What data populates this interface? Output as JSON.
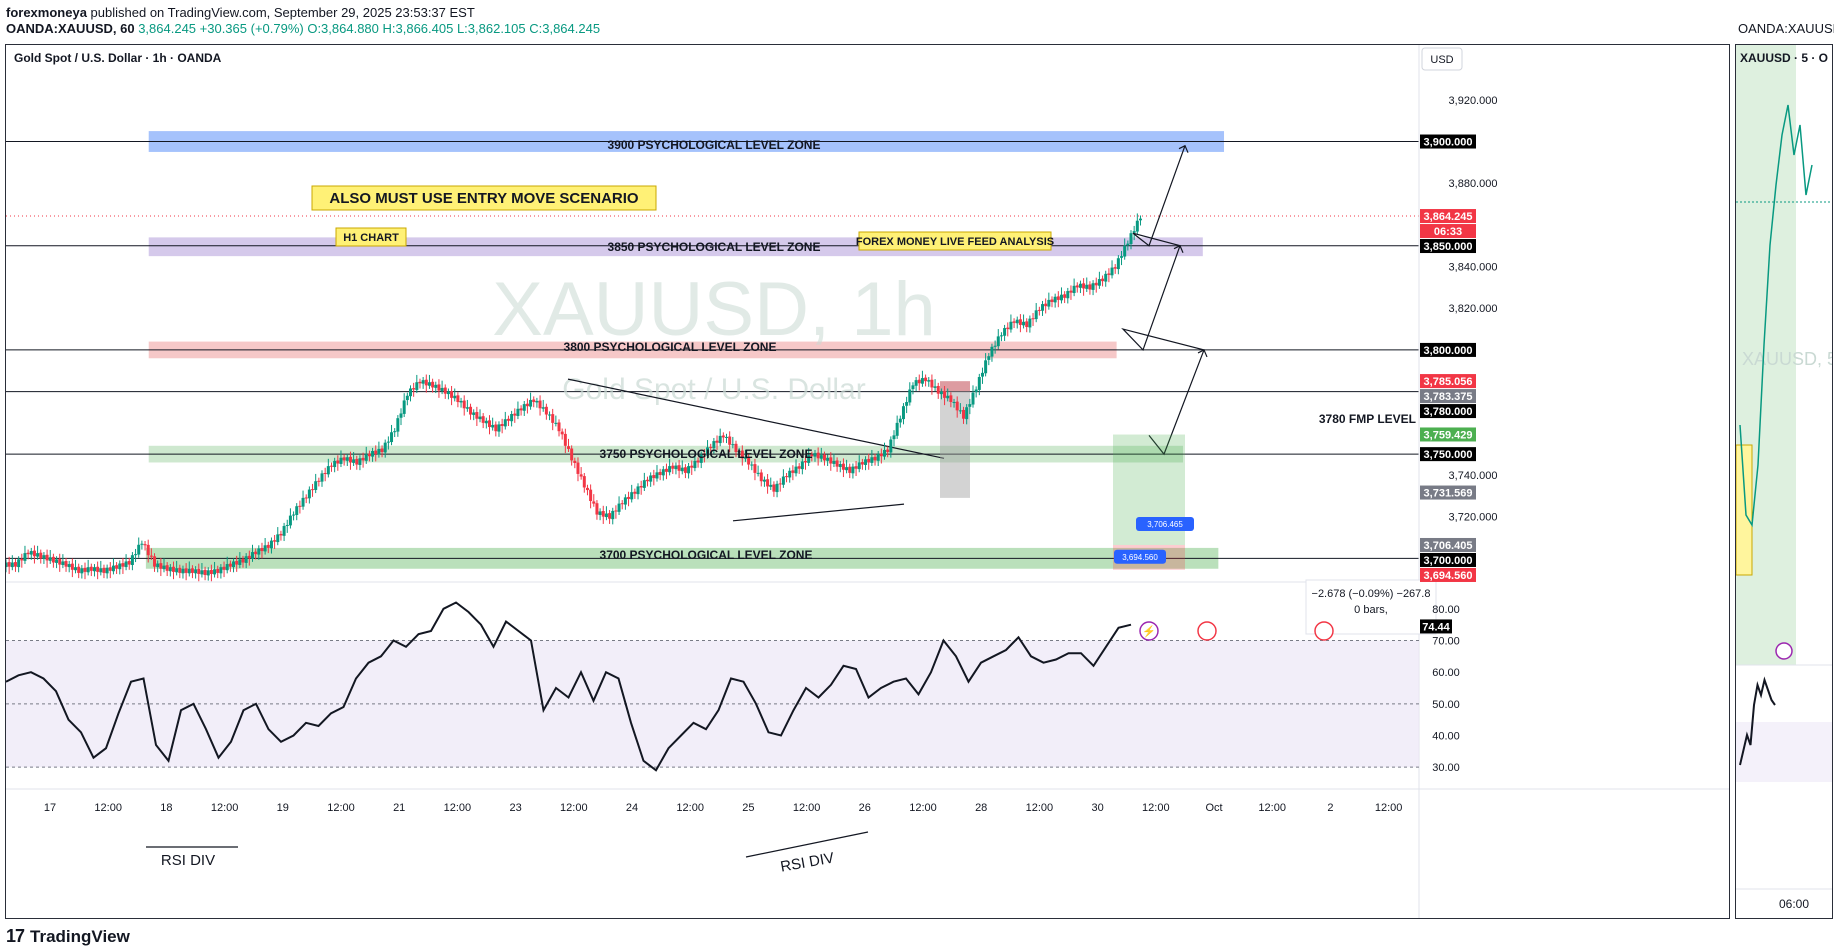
{
  "header": {
    "publisher": "forexmoneya",
    "published_text": "published on TradingView.com, September 29, 2025 23:53:37 EST",
    "symbol_line": "OANDA:XAUUSD, 60",
    "ohlc_values": "3,864.245 +30.365 (+0.79%) O:3,864.880 H:3,866.405 L:3,862.105 C:3,864.245"
  },
  "chart": {
    "title": "Gold Spot / U.S. Dollar · 1h · OANDA",
    "currency_button": "USD",
    "watermark_symbol": "XAUUSD, 1h",
    "watermark_name": "Gold Spot / U.S. Dollar"
  },
  "side_chart": {
    "top_label": "OANDA:XAUUSD",
    "title": "XAUUSD · 5 · O",
    "watermark": "XAUUSD, 5",
    "x_label": "06:00"
  },
  "annotations": {
    "zone_3900": "3900 PSYCHOLOGICAL LEVEL ZONE",
    "zone_3850": "3850 PSYCHOLOGICAL LEVEL ZONE",
    "zone_3800": "3800 PSYCHOLOGICAL LEVEL ZONE",
    "zone_3750": "3750 PSYCHOLOGICAL LEVEL ZONE",
    "zone_3700": "3700 PSYCHOLOGICAL LEVEL ZONE",
    "entry_note": "ALSO MUST USE ENTRY MOVE SCENARIO",
    "h1_note": "H1 CHART",
    "feed_note": "FOREX MONEY LIVE FEED ANALYSIS",
    "fmp_level": "3780 FMP LEVEL",
    "rsi_div_1": "RSI DIV",
    "rsi_div_2": "RSI DIV",
    "pos_label_top": "3,706.465",
    "pos_label_bottom": "3,694.560",
    "measure_text": "−2.678 (−0.09%) −267.8",
    "measure_bars": "0 bars,"
  },
  "footer": {
    "brand": "TradingView"
  },
  "chart_data": {
    "type": "candlestick",
    "symbol": "XAUUSD",
    "timeframe": "1h",
    "ylim": [
      3692,
      3930
    ],
    "y_ticks": [
      "3,920.000",
      "3,880.000",
      "3,840.000",
      "3,820.000",
      "3,740.000",
      "3,720.000"
    ],
    "x_ticks": [
      "17",
      "12:00",
      "18",
      "12:00",
      "19",
      "12:00",
      "21",
      "12:00",
      "23",
      "12:00",
      "24",
      "12:00",
      "25",
      "12:00",
      "26",
      "12:00",
      "28",
      "12:00",
      "30",
      "12:00",
      "Oct",
      "12:00",
      "2",
      "12:00"
    ],
    "price_labels": [
      {
        "text": "3,900.000",
        "value": 3900,
        "bg": "#000000",
        "fg": "#ffffff"
      },
      {
        "text": "3,864.245",
        "value": 3864.245,
        "bg": "#f23645",
        "fg": "#ffffff"
      },
      {
        "text": "06:33",
        "value": 3859.2,
        "bg": "#f23645",
        "fg": "#ffffff"
      },
      {
        "text": "3,850.000",
        "value": 3850,
        "bg": "#000000",
        "fg": "#ffffff"
      },
      {
        "text": "3,800.000",
        "value": 3800,
        "bg": "#000000",
        "fg": "#ffffff"
      },
      {
        "text": "3,785.056",
        "value": 3785.056,
        "bg": "#f23645",
        "fg": "#ffffff"
      },
      {
        "text": "3,783.375",
        "value": 3783.375,
        "bg": "#787b86",
        "fg": "#ffffff"
      },
      {
        "text": "3,780.000",
        "value": 3780,
        "bg": "#000000",
        "fg": "#ffffff"
      },
      {
        "text": "3,759.429",
        "value": 3759.429,
        "bg": "#4caf50",
        "fg": "#ffffff"
      },
      {
        "text": "3,750.000",
        "value": 3750,
        "bg": "#000000",
        "fg": "#ffffff"
      },
      {
        "text": "3,731.569",
        "value": 3731.569,
        "bg": "#787b86",
        "fg": "#ffffff"
      },
      {
        "text": "3,706.405",
        "value": 3706.405,
        "bg": "#787b86",
        "fg": "#ffffff"
      },
      {
        "text": "3,700.000",
        "value": 3700,
        "bg": "#000000",
        "fg": "#ffffff"
      },
      {
        "text": "3,694.560",
        "value": 3694.56,
        "bg": "#f23645",
        "fg": "#ffffff"
      }
    ],
    "levels": [
      3900,
      3850,
      3800,
      3780,
      3750,
      3700
    ],
    "zones": [
      {
        "from": 3895,
        "to": 3905,
        "color": "#5b8ff9"
      },
      {
        "from": 3845,
        "to": 3854,
        "color": "#b39ddb"
      },
      {
        "from": 3796,
        "to": 3804,
        "color": "#ef9a9a"
      },
      {
        "from": 3746,
        "to": 3754,
        "color": "#a5d6a7"
      },
      {
        "from": 3695,
        "to": 3705,
        "color": "#81c784"
      }
    ],
    "close_path": [
      3697,
      3703,
      3701,
      3699,
      3697,
      3694,
      3695,
      3694,
      3696,
      3698,
      3708,
      3697,
      3695,
      3694,
      3694,
      3693,
      3694,
      3697,
      3699,
      3703,
      3706,
      3712,
      3722,
      3730,
      3738,
      3745,
      3748,
      3746,
      3750,
      3752,
      3762,
      3779,
      3785,
      3783,
      3780,
      3776,
      3770,
      3766,
      3762,
      3767,
      3772,
      3776,
      3770,
      3762,
      3748,
      3735,
      3722,
      3720,
      3727,
      3732,
      3738,
      3741,
      3744,
      3742,
      3747,
      3754,
      3759,
      3752,
      3746,
      3738,
      3733,
      3740,
      3744,
      3750,
      3748,
      3745,
      3742,
      3746,
      3748,
      3752,
      3768,
      3784,
      3786,
      3780,
      3776,
      3768,
      3782,
      3798,
      3808,
      3814,
      3812,
      3820,
      3824,
      3826,
      3831,
      3830,
      3834,
      3840,
      3852,
      3864
    ],
    "rsi": {
      "ylim": [
        25,
        85
      ],
      "y_ticks": [
        "80.00",
        "70.00",
        "60.00",
        "50.00",
        "40.00",
        "30.00"
      ],
      "current": "74.44",
      "band": [
        30,
        70
      ],
      "values": [
        57,
        59,
        60,
        58,
        54,
        45,
        41,
        33,
        36,
        47,
        57,
        58,
        37,
        32,
        48,
        50,
        42,
        33,
        38,
        48,
        50,
        42,
        38,
        40,
        44,
        43,
        47,
        49,
        58,
        63,
        65,
        70,
        68,
        72,
        73,
        80,
        82,
        79,
        75,
        68,
        76,
        73,
        70,
        48,
        55,
        52,
        60,
        51,
        60,
        58,
        44,
        32,
        29,
        36,
        40,
        44,
        42,
        48,
        58,
        57,
        50,
        41,
        40,
        48,
        55,
        52,
        56,
        62,
        61,
        52,
        55,
        57,
        58,
        53,
        60,
        70,
        65,
        57,
        63,
        65,
        67,
        71,
        65,
        63,
        64,
        66,
        66,
        62,
        68,
        74,
        75
      ]
    }
  }
}
